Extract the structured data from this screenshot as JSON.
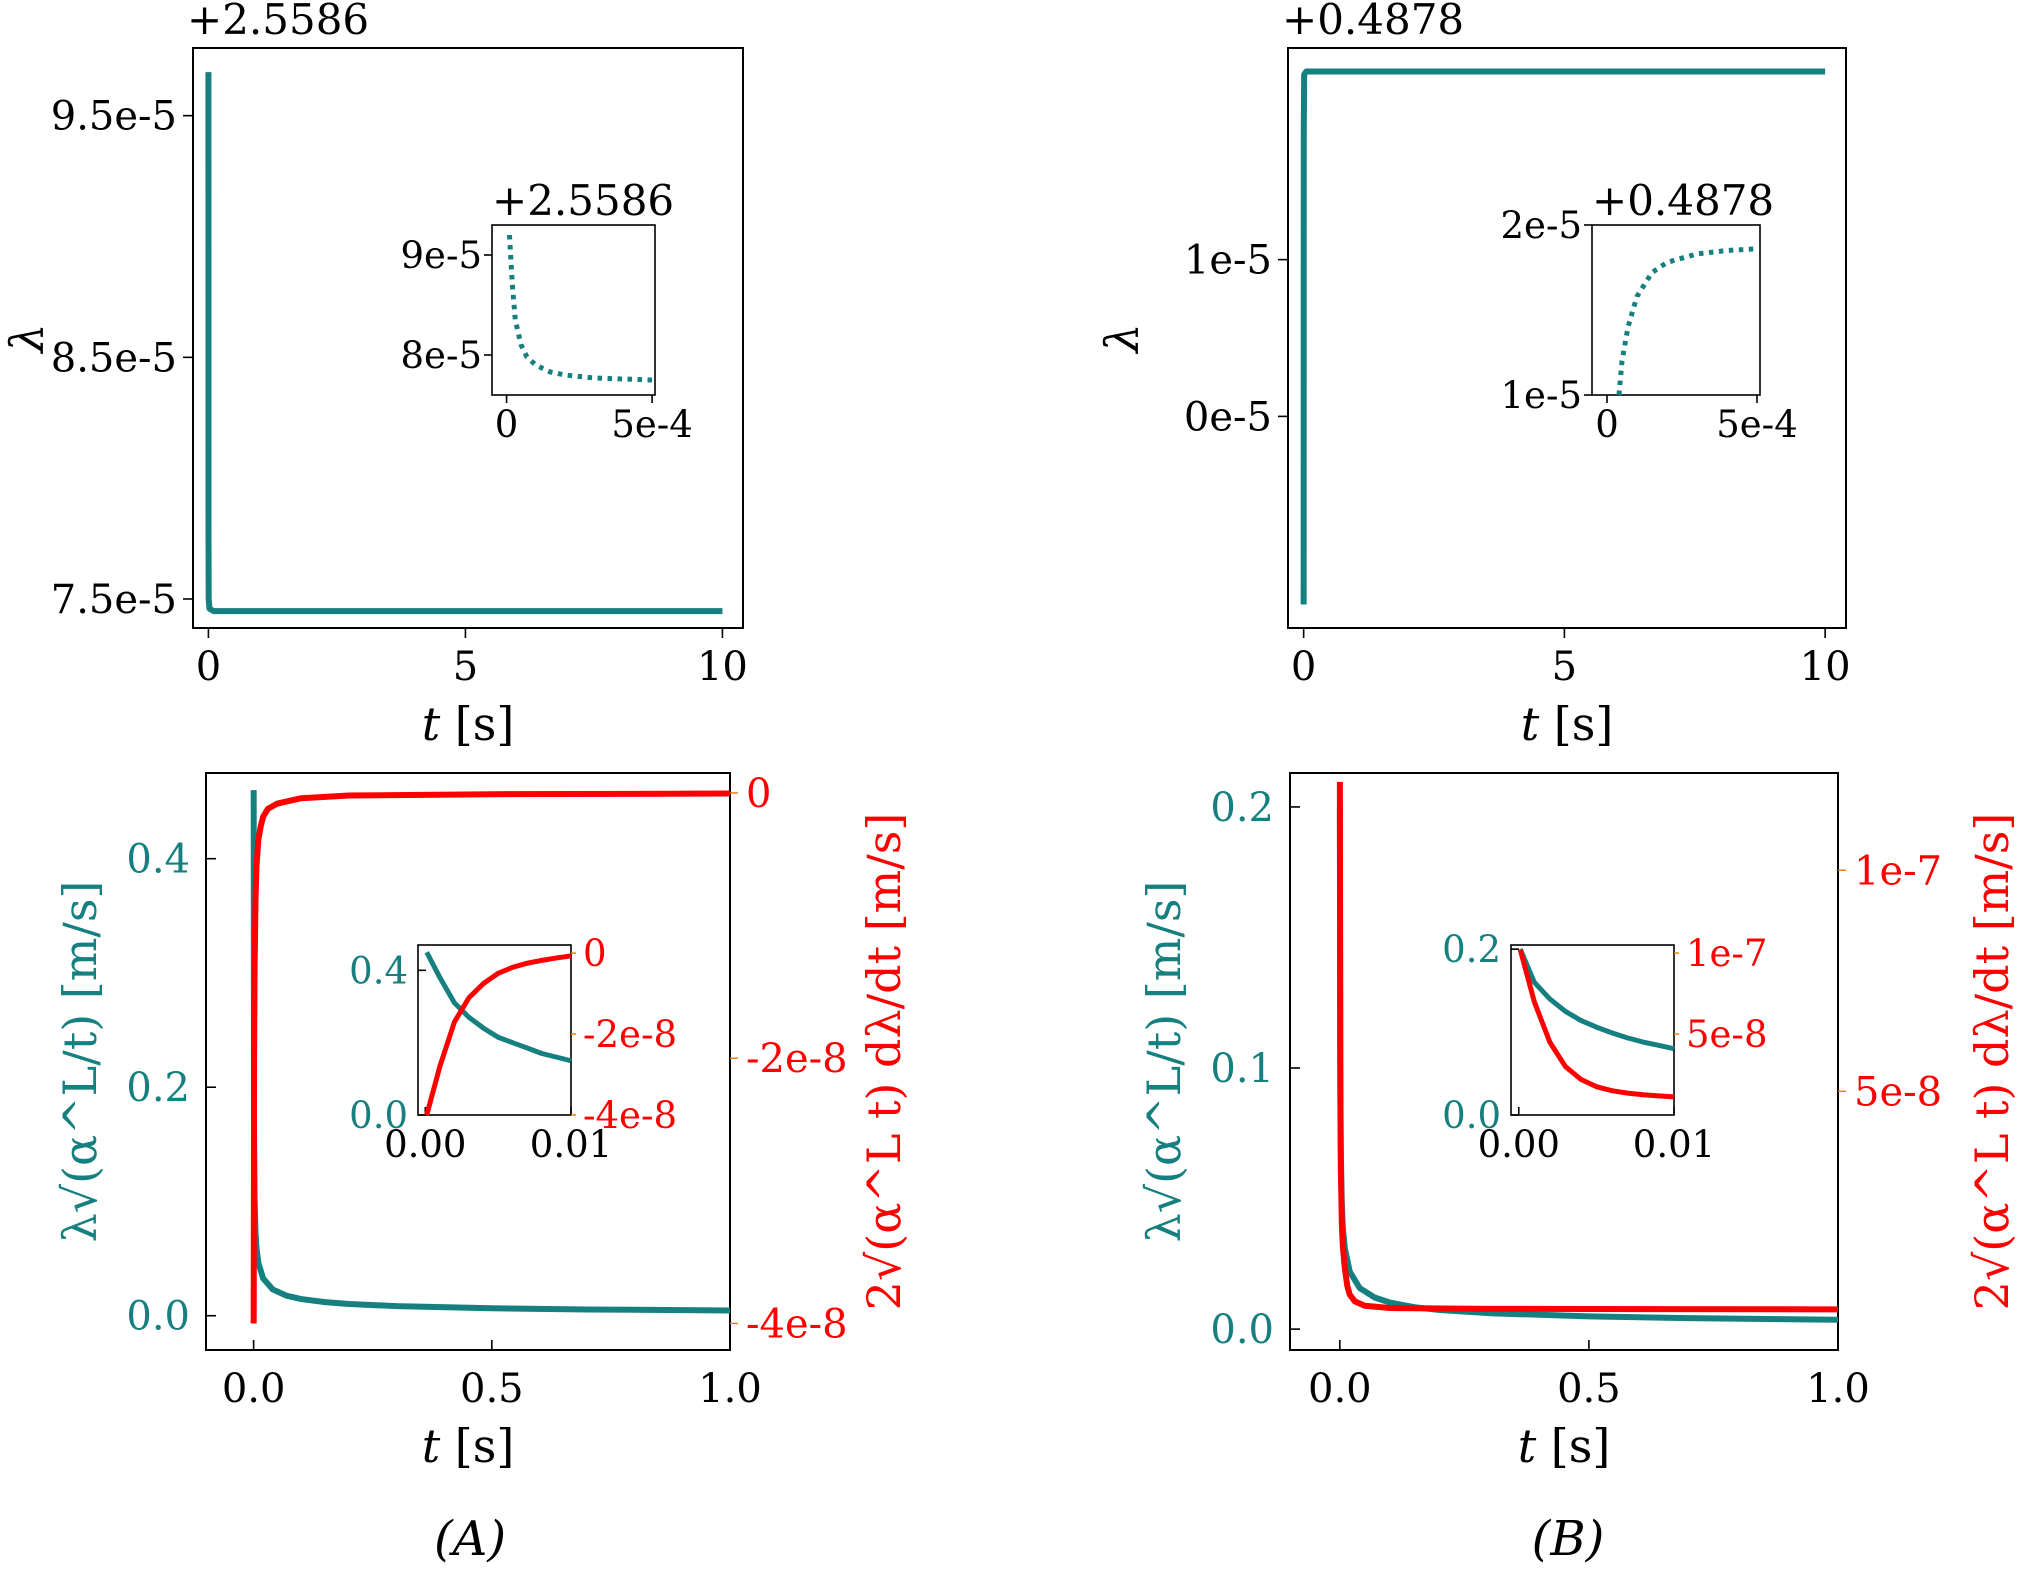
{
  "colors": {
    "teal": "#167f7f",
    "red": "#ff0000",
    "axis": "#000000"
  },
  "panel_labels": [
    "(A)",
    "(B)"
  ],
  "chart_data": [
    {
      "id": "A_top",
      "type": "line",
      "xlabel": "t [s]",
      "ylabel": "λ",
      "offset_text": "+2.5586",
      "xlim": [
        -0.3,
        10.4
      ],
      "ylim": [
        7.38e-05,
        9.78e-05
      ],
      "x_ticks": [
        0,
        5,
        10
      ],
      "x_tick_labels": [
        "0",
        "5",
        "10"
      ],
      "y_ticks": [
        7.5e-05,
        8.5e-05,
        9.5e-05
      ],
      "y_tick_labels": [
        "7.5e-5",
        "8.5e-5",
        "9.5e-5"
      ],
      "series": [
        {
          "color": "#167f7f",
          "style": "solid",
          "x": [
            0,
            0.002,
            0.005,
            0.02,
            0.1,
            0.5,
            2,
            5,
            10
          ],
          "y": [
            9.68e-05,
            7.75e-05,
            7.5e-05,
            7.46e-05,
            7.45e-05,
            7.45e-05,
            7.45e-05,
            7.45e-05,
            7.45e-05
          ]
        }
      ],
      "inset": {
        "offset_text": "+2.5586",
        "xlim": [
          -5e-05,
          0.00051
        ],
        "ylim": [
          7.6e-05,
          9.3e-05
        ],
        "x_ticks": [
          0,
          0.0005
        ],
        "x_tick_labels": [
          "0",
          "5e-4"
        ],
        "y_ticks": [
          8e-05,
          9e-05
        ],
        "y_tick_labels": [
          "8e-5",
          "9e-5"
        ],
        "series": [
          {
            "color": "#167f7f",
            "style": "dotted",
            "x": [
              1e-05,
              2e-05,
              3e-05,
              5e-05,
              7e-05,
              0.0001,
              0.00015,
              0.0002,
              0.0003,
              0.0004,
              0.0005
            ],
            "y": [
              9.2e-05,
              8.7e-05,
              8.35e-05,
              8.1e-05,
              7.98e-05,
              7.9e-05,
              7.83e-05,
              7.8e-05,
              7.77e-05,
              7.76e-05,
              7.75e-05
            ]
          }
        ]
      }
    },
    {
      "id": "B_top",
      "type": "line",
      "xlabel": "t [s]",
      "ylabel": "λ",
      "offset_text": "+0.4878",
      "xlim": [
        -0.3,
        10.4
      ],
      "ylim": [
        -1.35e-05,
        2.35e-05
      ],
      "x_ticks": [
        0,
        5,
        10
      ],
      "x_tick_labels": [
        "0",
        "5",
        "10"
      ],
      "y_ticks": [
        0,
        1e-05
      ],
      "y_tick_labels": [
        "0e-5",
        "1e-5"
      ],
      "series": [
        {
          "color": "#167f7f",
          "style": "solid",
          "x": [
            0,
            0.002,
            0.01,
            0.05,
            0.5,
            5,
            10
          ],
          "y": [
            -1.2e-05,
            1.8e-05,
            2.18e-05,
            2.2e-05,
            2.2e-05,
            2.2e-05,
            2.2e-05
          ]
        }
      ],
      "inset": {
        "offset_text": "+0.4878",
        "xlim": [
          -5e-05,
          0.00051
        ],
        "ylim": [
          1e-05,
          2e-05
        ],
        "x_ticks": [
          0,
          0.0005
        ],
        "x_tick_labels": [
          "0",
          "5e-4"
        ],
        "y_ticks": [
          1e-05,
          2e-05
        ],
        "y_tick_labels": [
          "1e-5",
          "2e-5"
        ],
        "series": [
          {
            "color": "#167f7f",
            "style": "dotted",
            "x": [
              4e-05,
              5e-05,
              7e-05,
              0.0001,
              0.00015,
              0.0002,
              0.0003,
              0.0004,
              0.0005
            ],
            "y": [
              1e-05,
              1.2e-05,
              1.4e-05,
              1.58e-05,
              1.72e-05,
              1.78e-05,
              1.83e-05,
              1.85e-05,
              1.86e-05
            ]
          }
        ]
      }
    },
    {
      "id": "A_bottom",
      "type": "line",
      "xlabel": "t [s]",
      "ylabel_left": "λ√(α^L/t) [m/s]",
      "ylabel_right": "2√(α^L t) dλ/dt [m/s]",
      "xlim": [
        -0.1,
        1.0
      ],
      "ylim_left": [
        -0.03,
        0.475
      ],
      "ylim_right": [
        -4.2e-08,
        1.5e-09
      ],
      "x_ticks": [
        0,
        0.5,
        1.0
      ],
      "x_tick_labels": [
        "0.0",
        "0.5",
        "1.0"
      ],
      "y_ticks_left": [
        0,
        0.2,
        0.4
      ],
      "y_tick_labels_left": [
        "0.0",
        "0.2",
        "0.4"
      ],
      "y_ticks_right": [
        -4e-08,
        -2e-08,
        0
      ],
      "y_tick_labels_right": [
        "-4e-8",
        "-2e-8",
        "0"
      ],
      "series": [
        {
          "axis": "left",
          "color": "#167f7f",
          "x": [
            0.0001,
            0.0008,
            0.002,
            0.004,
            0.006,
            0.01,
            0.02,
            0.04,
            0.07,
            0.1,
            0.15,
            0.2,
            0.3,
            0.5,
            0.7,
            1.0
          ],
          "y": [
            0.46,
            0.163,
            0.103,
            0.073,
            0.059,
            0.046,
            0.0326,
            0.023,
            0.0174,
            0.0146,
            0.0119,
            0.0103,
            0.0084,
            0.0065,
            0.0055,
            0.0046
          ]
        },
        {
          "axis": "right",
          "color": "#ff0000",
          "x": [
            0.0001,
            0.001,
            0.002,
            0.004,
            0.006,
            0.01,
            0.015,
            0.02,
            0.03,
            0.05,
            0.1,
            0.2,
            0.5,
            1.0
          ],
          "y": [
            -4e-08,
            -2e-08,
            -1.3e-08,
            -8e-09,
            -5.5e-09,
            -3.5e-09,
            -2.5e-09,
            -1.8e-09,
            -1.2e-09,
            -8e-10,
            -4e-10,
            -2e-10,
            -1e-10,
            -5e-11
          ]
        }
      ],
      "inset": {
        "xlim": [
          -0.0005,
          0.01
        ],
        "ylim_left": [
          0,
          0.47
        ],
        "ylim_right": [
          -4e-08,
          2e-09
        ],
        "x_ticks": [
          0,
          0.01
        ],
        "x_tick_labels": [
          "0.00",
          "0.01"
        ],
        "y_ticks_left": [
          0,
          0.4
        ],
        "y_tick_labels_left": [
          "0.0",
          "0.4"
        ],
        "y_ticks_right": [
          -4e-08,
          -2e-08,
          0
        ],
        "y_tick_labels_right": [
          "-4e-8",
          "-2e-8",
          "0"
        ],
        "series": [
          {
            "axis": "left",
            "color": "#167f7f",
            "x": [
              0.0001,
              0.001,
              0.002,
              0.003,
              0.004,
              0.005,
              0.006,
              0.007,
              0.008,
              0.009,
              0.01
            ],
            "y": [
              0.45,
              0.38,
              0.31,
              0.27,
              0.24,
              0.215,
              0.2,
              0.185,
              0.17,
              0.16,
              0.15
            ]
          },
          {
            "axis": "right",
            "color": "#ff0000",
            "x": [
              0.0001,
              0.001,
              0.002,
              0.003,
              0.004,
              0.005,
              0.006,
              0.007,
              0.008,
              0.009,
              0.01
            ],
            "y": [
              -4e-08,
              -2.8e-08,
              -1.7e-08,
              -1.1e-08,
              -7.5e-09,
              -5e-09,
              -3.5e-09,
              -2.5e-09,
              -1.8e-09,
              -1.2e-09,
              -7e-10
            ]
          }
        ]
      }
    },
    {
      "id": "B_bottom",
      "type": "line",
      "xlabel": "t [s]",
      "ylabel_left": "λ√(α^L/t) [m/s]",
      "ylabel_right": "2√(α^L t) dλ/dt [m/s]",
      "xlim": [
        -0.1,
        1.0
      ],
      "ylim_left": [
        -0.008,
        0.213
      ],
      "ylim_right": [
        -8.5e-09,
        1.22e-07
      ],
      "x_ticks": [
        0,
        0.5,
        1.0
      ],
      "x_tick_labels": [
        "0.0",
        "0.5",
        "1.0"
      ],
      "y_ticks_left": [
        0,
        0.1,
        0.2
      ],
      "y_tick_labels_left": [
        "0.0",
        "0.1",
        "0.2"
      ],
      "y_ticks_right": [
        5e-08,
        1e-07
      ],
      "y_tick_labels_right": [
        "5e-8",
        "1e-7"
      ],
      "series": [
        {
          "axis": "left",
          "color": "#167f7f",
          "x": [
            0.0001,
            0.0008,
            0.002,
            0.004,
            0.006,
            0.01,
            0.02,
            0.04,
            0.07,
            0.1,
            0.15,
            0.2,
            0.3,
            0.5,
            0.7,
            1.0
          ],
          "y": [
            0.2,
            0.105,
            0.068,
            0.048,
            0.039,
            0.031,
            0.022,
            0.0157,
            0.0121,
            0.0102,
            0.0084,
            0.0073,
            0.0061,
            0.0049,
            0.0042,
            0.0036
          ]
        },
        {
          "axis": "right",
          "color": "#ff0000",
          "x": [
            0.0001,
            0.001,
            0.002,
            0.004,
            0.006,
            0.01,
            0.015,
            0.02,
            0.03,
            0.05,
            0.1,
            0.3,
            1.0
          ],
          "y": [
            1.2e-07,
            5e-08,
            3.3e-08,
            2e-08,
            1.5e-08,
            1e-08,
            6e-09,
            4e-09,
            2.5e-09,
            1.5e-09,
            1e-09,
            8e-10,
            7e-10
          ]
        }
      ],
      "inset": {
        "xlim": [
          -0.0005,
          0.01
        ],
        "ylim_left": [
          0,
          0.205
        ],
        "ylim_right": [
          0,
          1.05e-07
        ],
        "x_ticks": [
          0,
          0.01
        ],
        "x_tick_labels": [
          "0.00",
          "0.01"
        ],
        "y_ticks_left": [
          0,
          0.2
        ],
        "y_tick_labels_left": [
          "0.0",
          "0.2"
        ],
        "y_ticks_right": [
          5e-08,
          1e-07
        ],
        "y_tick_labels_right": [
          "5e-8",
          "1e-7"
        ],
        "series": [
          {
            "axis": "left",
            "color": "#167f7f",
            "x": [
              0.0001,
              0.001,
              0.002,
              0.003,
              0.004,
              0.005,
              0.006,
              0.007,
              0.008,
              0.009,
              0.01
            ],
            "y": [
              0.2,
              0.16,
              0.14,
              0.125,
              0.114,
              0.106,
              0.099,
              0.093,
              0.088,
              0.084,
              0.08
            ]
          },
          {
            "axis": "right",
            "color": "#ff0000",
            "x": [
              0.0001,
              0.001,
              0.002,
              0.003,
              0.004,
              0.005,
              0.006,
              0.007,
              0.008,
              0.009,
              0.01
            ],
            "y": [
              1.02e-07,
              7e-08,
              4.5e-08,
              3e-08,
              2.2e-08,
              1.75e-08,
              1.5e-08,
              1.35e-08,
              1.25e-08,
              1.18e-08,
              1.12e-08
            ]
          }
        ]
      }
    }
  ]
}
